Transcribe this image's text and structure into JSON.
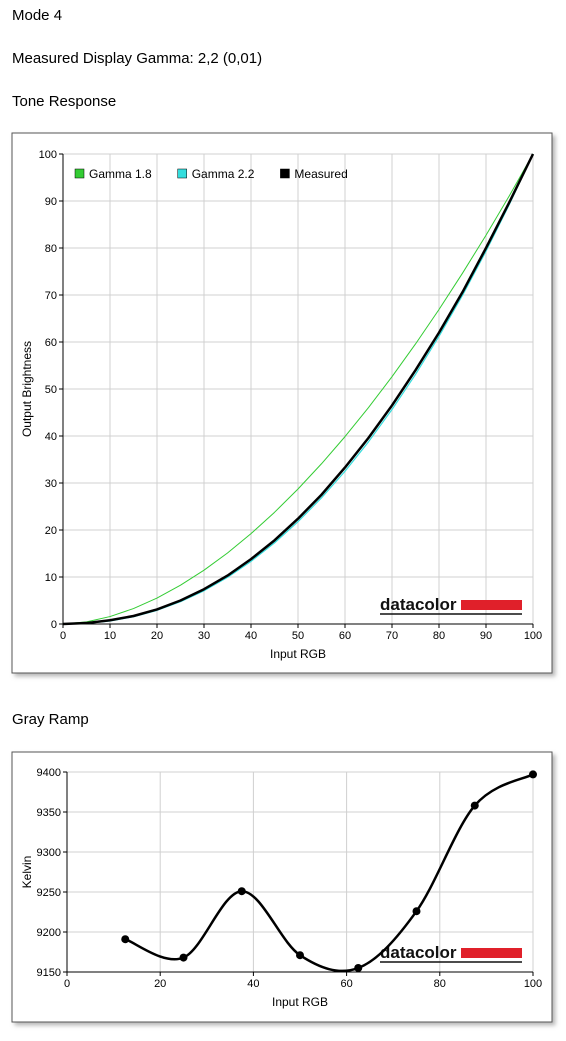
{
  "header": {
    "title": "Mode 4",
    "subtitle": "Measured Display Gamma: 2,2 (0,01)"
  },
  "chart_data": [
    {
      "type": "line",
      "title": "Tone Response",
      "x_label": "Input RGB",
      "y_label": "Output Brightness",
      "watermark": "datacolor",
      "x": [
        0,
        5,
        10,
        15,
        20,
        25,
        30,
        35,
        40,
        45,
        50,
        55,
        60,
        65,
        70,
        75,
        80,
        85,
        90,
        95,
        100
      ],
      "series": [
        {
          "name": "Gamma 1.8",
          "color": "#33cc33",
          "line_width": 1,
          "values": [
            0,
            0.46,
            1.58,
            3.29,
            5.52,
            8.25,
            11.45,
            15.11,
            19.22,
            23.76,
            28.72,
            34.09,
            39.87,
            46.05,
            52.62,
            59.58,
            66.92,
            74.64,
            82.72,
            91.18,
            100
          ]
        },
        {
          "name": "Gamma 2.2",
          "color": "#33dddd",
          "line_width": 1.2,
          "values": [
            0,
            0.14,
            0.63,
            1.54,
            2.9,
            4.74,
            7.07,
            9.93,
            13.32,
            17.26,
            21.76,
            26.84,
            32.5,
            38.76,
            45.63,
            53.1,
            61.2,
            69.94,
            79.31,
            89.33,
            100
          ]
        },
        {
          "name": "Measured",
          "color": "#000000",
          "line_width": 2.5,
          "values": [
            0,
            0.2,
            0.8,
            1.7,
            3.1,
            5.0,
            7.4,
            10.3,
            13.8,
            17.8,
            22.4,
            27.5,
            33.3,
            39.6,
            46.5,
            54.0,
            62.0,
            70.6,
            80.0,
            89.8,
            100
          ]
        }
      ],
      "xlim": [
        0,
        100
      ],
      "xticks": [
        0,
        10,
        20,
        30,
        40,
        50,
        60,
        70,
        80,
        90,
        100
      ],
      "ylim": [
        0,
        100
      ],
      "yticks": [
        0,
        10,
        20,
        30,
        40,
        50,
        60,
        70,
        80,
        90,
        100
      ],
      "grid": true,
      "legend": "top-left",
      "smooth": false,
      "markers": false
    },
    {
      "type": "line",
      "title": "Gray Ramp",
      "x_label": "Input RGB",
      "y_label": "Kelvin",
      "watermark": "datacolor",
      "x": [
        12.5,
        25,
        37.5,
        50,
        62.5,
        75,
        87.5,
        100
      ],
      "series": [
        {
          "color": "#000000",
          "line_width": 2.5,
          "values": [
            9191,
            9168,
            9251,
            9171,
            9155,
            9226,
            9358,
            9397
          ]
        }
      ],
      "xlim": [
        0,
        100
      ],
      "xticks": [
        0,
        20,
        40,
        60,
        80,
        100
      ],
      "ylim": [
        9150,
        9400
      ],
      "yticks": [
        9150,
        9200,
        9250,
        9300,
        9350,
        9400
      ],
      "grid": true,
      "smooth": true,
      "markers": true
    }
  ]
}
